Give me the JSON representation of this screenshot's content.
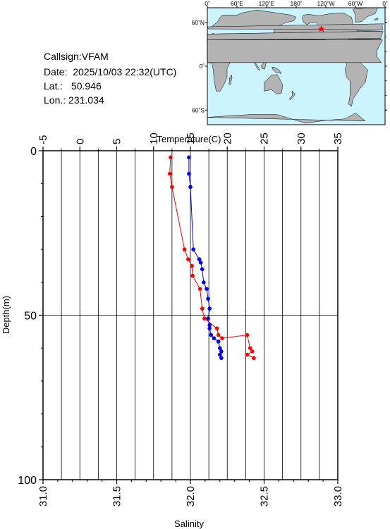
{
  "header": {
    "callsign_label": "Callsign:",
    "callsign": "VFAM",
    "date_label": "Date: ",
    "date": "2025/10/03 22:32(UTC)",
    "lat_label": "Lat.:",
    "lat": "50.946",
    "lon_label": "Lon.:",
    "lon": "231.034"
  },
  "map": {
    "top_lon_labels": [
      "0˚",
      "60˚E",
      "120˚E",
      "180˚",
      "120˚W",
      "60˚W",
      "0˚"
    ],
    "lat_labels": [
      "60˚N",
      "0˚",
      "60˚S"
    ],
    "ocean_color": "#ccf4ff",
    "land_color": "#b3b3b3",
    "marker_color": "#ff0000",
    "marker_symbol": "star",
    "station_lon": 231.034,
    "station_lat": 50.946
  },
  "chart_data": {
    "type": "line",
    "title": "",
    "top_axis": {
      "label": "Temperature(C)",
      "range": [
        -5,
        35
      ],
      "ticks": [
        "-5",
        "0",
        "5",
        "10",
        "15",
        "20",
        "25",
        "30",
        "35"
      ]
    },
    "bottom_axis": {
      "label": "Salinity",
      "range": [
        31.0,
        33.0
      ],
      "ticks": [
        "31.0",
        "31.5",
        "32.0",
        "32.5",
        "33.0"
      ]
    },
    "y_axis": {
      "label": "Depth(m)",
      "range": [
        0,
        100
      ],
      "inverted": true,
      "ticks": [
        "0",
        "50",
        "100"
      ]
    },
    "grid": true,
    "series": [
      {
        "axis": "temperature",
        "color": "#ff0000",
        "points": [
          {
            "x": 12.3,
            "depth": 2
          },
          {
            "x": 12.2,
            "depth": 7
          },
          {
            "x": 12.5,
            "depth": 11
          },
          {
            "x": 14.2,
            "depth": 30
          },
          {
            "x": 14.7,
            "depth": 33
          },
          {
            "x": 15.2,
            "depth": 35
          },
          {
            "x": 15.3,
            "depth": 38
          },
          {
            "x": 16.3,
            "depth": 42
          },
          {
            "x": 16.6,
            "depth": 48
          },
          {
            "x": 16.9,
            "depth": 51
          },
          {
            "x": 18.6,
            "depth": 54
          },
          {
            "x": 18.8,
            "depth": 56
          },
          {
            "x": 19.3,
            "depth": 57
          },
          {
            "x": 22.7,
            "depth": 56
          },
          {
            "x": 23.1,
            "depth": 60
          },
          {
            "x": 23.4,
            "depth": 61
          },
          {
            "x": 22.7,
            "depth": 62
          },
          {
            "x": 23.6,
            "depth": 63
          }
        ]
      },
      {
        "axis": "salinity",
        "color": "#0000ff",
        "points": [
          {
            "x": 31.99,
            "depth": 2
          },
          {
            "x": 31.99,
            "depth": 7
          },
          {
            "x": 32.0,
            "depth": 11
          },
          {
            "x": 32.02,
            "depth": 30
          },
          {
            "x": 32.06,
            "depth": 33
          },
          {
            "x": 32.07,
            "depth": 34
          },
          {
            "x": 32.08,
            "depth": 36
          },
          {
            "x": 32.09,
            "depth": 40
          },
          {
            "x": 32.11,
            "depth": 42
          },
          {
            "x": 32.12,
            "depth": 45
          },
          {
            "x": 32.13,
            "depth": 48
          },
          {
            "x": 32.12,
            "depth": 51
          },
          {
            "x": 32.13,
            "depth": 53
          },
          {
            "x": 32.13,
            "depth": 54
          },
          {
            "x": 32.14,
            "depth": 56
          },
          {
            "x": 32.16,
            "depth": 57
          },
          {
            "x": 32.19,
            "depth": 58
          },
          {
            "x": 32.2,
            "depth": 60
          },
          {
            "x": 32.21,
            "depth": 61
          },
          {
            "x": 32.2,
            "depth": 62
          },
          {
            "x": 32.21,
            "depth": 63
          }
        ]
      }
    ]
  }
}
